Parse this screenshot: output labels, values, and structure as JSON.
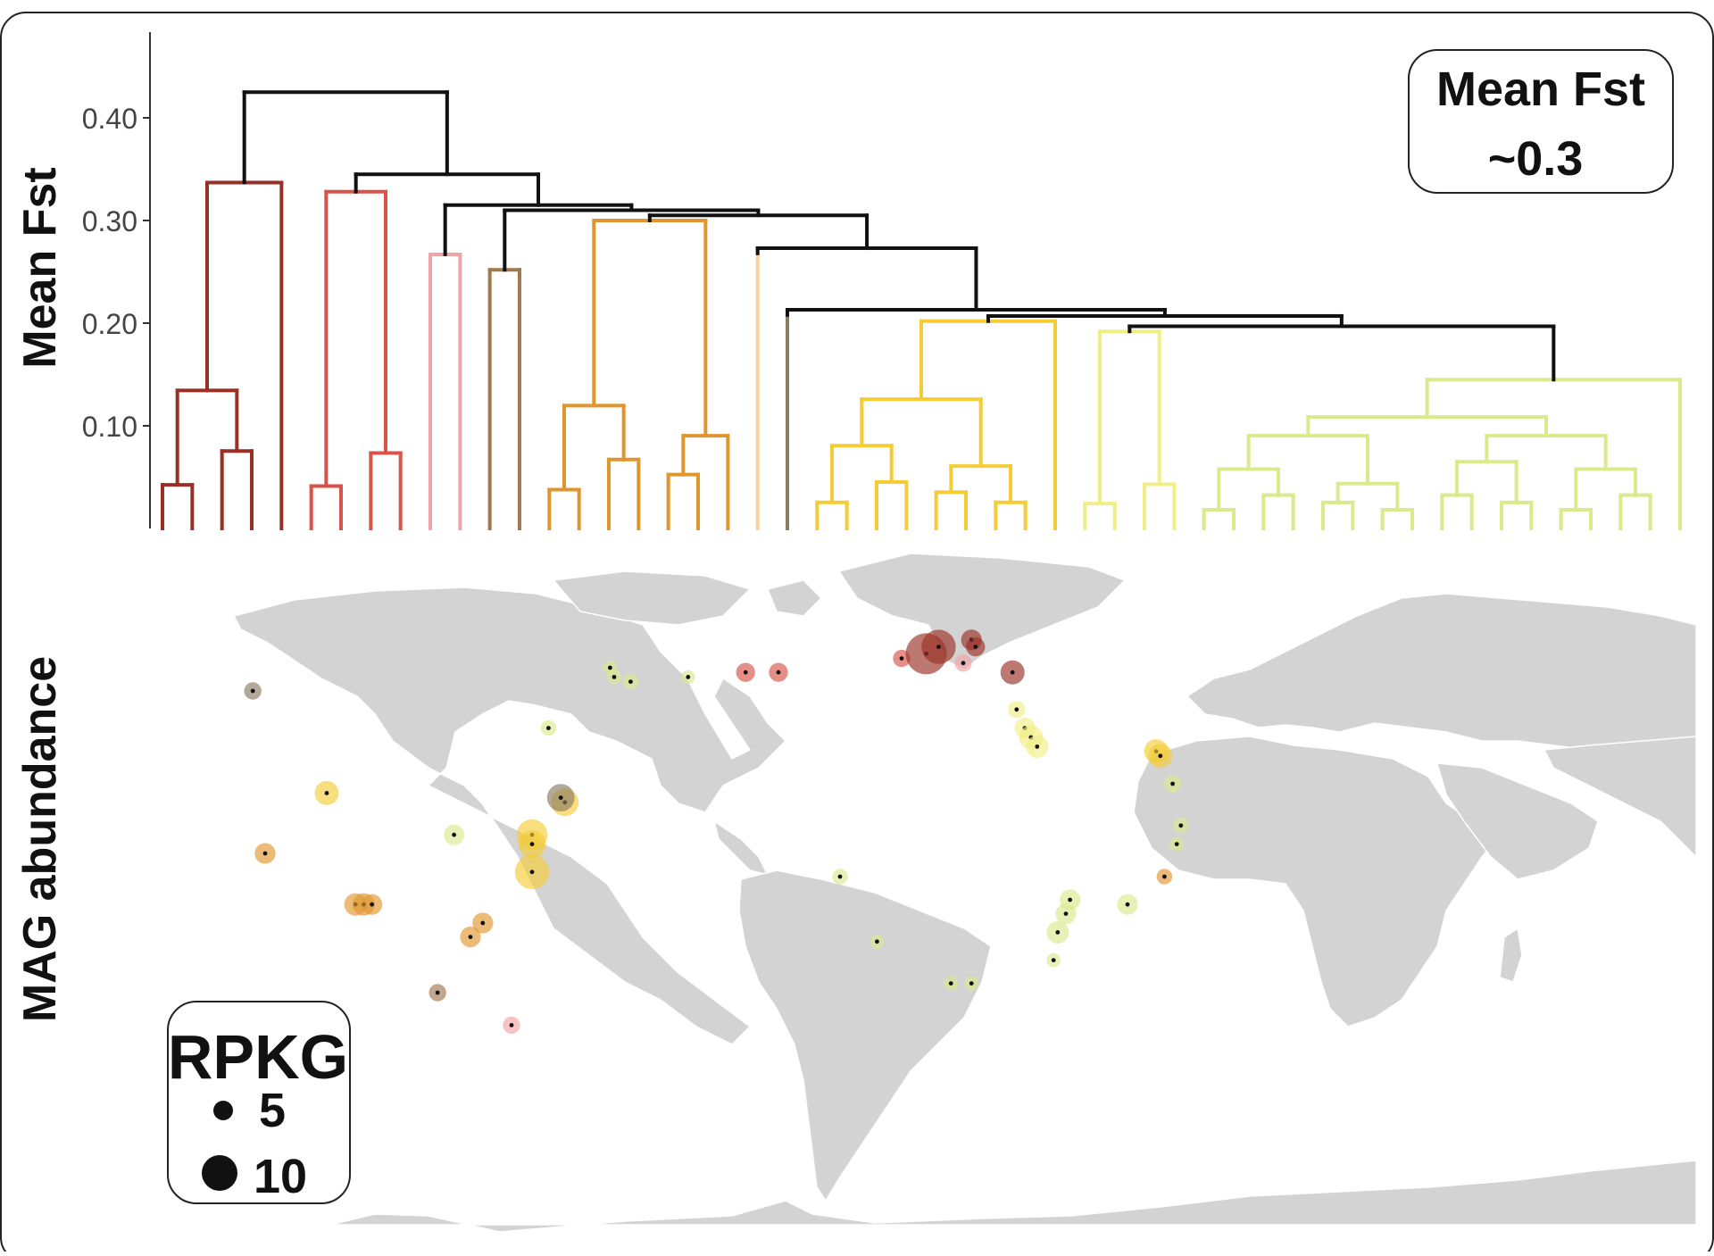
{
  "chart_data": [
    {
      "type": "dendrogram",
      "ylabel": "Mean Fst",
      "ylim": [
        0,
        0.48
      ],
      "yticks": [
        {
          "value": 0.1,
          "label": "0.10"
        },
        {
          "value": 0.2,
          "label": "0.20"
        },
        {
          "value": 0.3,
          "label": "0.30"
        },
        {
          "value": 0.4,
          "label": "0.40"
        }
      ],
      "annotation": {
        "line1": "Mean Fst",
        "line2": "~0.3"
      },
      "clusters": [
        {
          "color": "#9a2f25",
          "n_leaves": 5,
          "merge_height": 0.337
        },
        {
          "color": "#d9534a",
          "n_leaves": 4,
          "merge_height": 0.328
        },
        {
          "color": "#f2a3a6",
          "n_leaves": 2,
          "merge_height": 0.267
        },
        {
          "color": "#a2784e",
          "n_leaves": 2,
          "merge_height": 0.252
        },
        {
          "color": "#e0962e",
          "n_leaves": 7,
          "merge_height": 0.3
        },
        {
          "color": "#fdd09e",
          "n_leaves": 1,
          "merge_height": 0.268
        },
        {
          "color": "#8a7b62",
          "n_leaves": 1,
          "merge_height": 0.208
        },
        {
          "color": "#f4cc36",
          "n_leaves": 9,
          "merge_height": 0.202
        },
        {
          "color": "#f1ee84",
          "n_leaves": 4,
          "merge_height": 0.192
        },
        {
          "color": "#dce98d",
          "n_leaves": 17,
          "merge_height": 0.145
        }
      ]
    },
    {
      "type": "bubble-map",
      "ylabel": "MAG abundance",
      "legend": {
        "title": "RPKG",
        "items": [
          {
            "label": "5",
            "value": 5
          },
          {
            "label": "10",
            "value": 10
          }
        ]
      },
      "points": [
        {
          "lon": -158,
          "lat": 30,
          "rpkg": 3,
          "color": "#8a7b62"
        },
        {
          "lon": -140,
          "lat": 8,
          "rpkg": 5,
          "color": "#f4cc36"
        },
        {
          "lon": -155,
          "lat": -5,
          "rpkg": 4,
          "color": "#e0962e"
        },
        {
          "lon": -133,
          "lat": -16,
          "rpkg": 4.5,
          "color": "#e0962e"
        },
        {
          "lon": -131,
          "lat": -16,
          "rpkg": 4.5,
          "color": "#e0962e"
        },
        {
          "lon": -129,
          "lat": -16,
          "rpkg": 4,
          "color": "#e0962e"
        },
        {
          "lon": -113,
          "lat": -35,
          "rpkg": 3,
          "color": "#a2784e"
        },
        {
          "lon": -105,
          "lat": -23,
          "rpkg": 4,
          "color": "#e0962e"
        },
        {
          "lon": -102,
          "lat": -20,
          "rpkg": 4,
          "color": "#e0962e"
        },
        {
          "lon": -109,
          "lat": -1,
          "rpkg": 4,
          "color": "#dce98d"
        },
        {
          "lon": -86,
          "lat": 22,
          "rpkg": 2.5,
          "color": "#dce98d"
        },
        {
          "lon": -90,
          "lat": -1,
          "rpkg": 7,
          "color": "#f4cc36"
        },
        {
          "lon": -90,
          "lat": -3,
          "rpkg": 6,
          "color": "#f4cc36"
        },
        {
          "lon": -90,
          "lat": -9,
          "rpkg": 8,
          "color": "#f4cc36"
        },
        {
          "lon": -82,
          "lat": 6,
          "rpkg": 6,
          "color": "#f4cc36"
        },
        {
          "lon": -83,
          "lat": 7,
          "rpkg": 6,
          "color": "#8a7b62"
        },
        {
          "lon": -95,
          "lat": -42,
          "rpkg": 3,
          "color": "#f2a3a6"
        },
        {
          "lon": -70,
          "lat": 33,
          "rpkg": 2,
          "color": "#dce98d"
        },
        {
          "lon": -71,
          "lat": 35,
          "rpkg": 2,
          "color": "#dce98d"
        },
        {
          "lon": -66,
          "lat": 32,
          "rpkg": 2.5,
          "color": "#dce98d"
        },
        {
          "lon": -52,
          "lat": 33,
          "rpkg": 2,
          "color": "#dce98d"
        },
        {
          "lon": -38,
          "lat": 34,
          "rpkg": 3.5,
          "color": "#d9534a"
        },
        {
          "lon": -30,
          "lat": 34,
          "rpkg": 3.5,
          "color": "#d9534a"
        },
        {
          "lon": -15,
          "lat": -10,
          "rpkg": 2.5,
          "color": "#dce98d"
        },
        {
          "lon": -6,
          "lat": -24,
          "rpkg": 2,
          "color": "#dce98d"
        },
        {
          "lon": 0,
          "lat": 37,
          "rpkg": 3,
          "color": "#d9534a"
        },
        {
          "lon": 6,
          "lat": 38,
          "rpkg": 10,
          "color": "#9a2f25"
        },
        {
          "lon": 9,
          "lat": 39.5,
          "rpkg": 8,
          "color": "#9a2f25"
        },
        {
          "lon": 15,
          "lat": 36,
          "rpkg": 3,
          "color": "#f2a3a6"
        },
        {
          "lon": 17,
          "lat": 41,
          "rpkg": 4,
          "color": "#9a2f25"
        },
        {
          "lon": 18,
          "lat": 39.5,
          "rpkg": 3.5,
          "color": "#9a2f25"
        },
        {
          "lon": 27,
          "lat": 34,
          "rpkg": 5,
          "color": "#9a2f25"
        },
        {
          "lon": 28,
          "lat": 26,
          "rpkg": 3,
          "color": "#f1ee84"
        },
        {
          "lon": 30,
          "lat": 22,
          "rpkg": 4,
          "color": "#f1ee84"
        },
        {
          "lon": 31.5,
          "lat": 20,
          "rpkg": 5,
          "color": "#f1ee84"
        },
        {
          "lon": 33,
          "lat": 18,
          "rpkg": 4.5,
          "color": "#f1ee84"
        },
        {
          "lon": 41,
          "lat": -15,
          "rpkg": 4,
          "color": "#dce98d"
        },
        {
          "lon": 40,
          "lat": -18,
          "rpkg": 4,
          "color": "#dce98d"
        },
        {
          "lon": 38,
          "lat": -22,
          "rpkg": 4.5,
          "color": "#dce98d"
        },
        {
          "lon": 37,
          "lat": -28,
          "rpkg": 2,
          "color": "#dce98d"
        },
        {
          "lon": 55,
          "lat": -16,
          "rpkg": 4,
          "color": "#dce98d"
        },
        {
          "lon": 12,
          "lat": -33,
          "rpkg": 2,
          "color": "#dce98d"
        },
        {
          "lon": 17,
          "lat": -33,
          "rpkg": 2,
          "color": "#dce98d"
        },
        {
          "lon": 62,
          "lat": 17,
          "rpkg": 5,
          "color": "#f4cc36"
        },
        {
          "lon": 63,
          "lat": 16,
          "rpkg": 5,
          "color": "#f4cc36"
        },
        {
          "lon": 66,
          "lat": 10,
          "rpkg": 3,
          "color": "#dce98d"
        },
        {
          "lon": 68,
          "lat": 1,
          "rpkg": 2.5,
          "color": "#dce98d"
        },
        {
          "lon": 67,
          "lat": -3,
          "rpkg": 2,
          "color": "#dce98d"
        },
        {
          "lon": 64,
          "lat": -10,
          "rpkg": 2.5,
          "color": "#e0962e"
        }
      ]
    }
  ]
}
